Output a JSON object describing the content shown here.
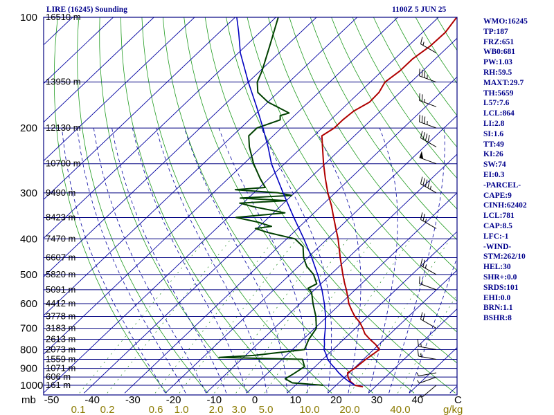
{
  "header": {
    "station": "LIRE (16245) Sounding",
    "time": "1100Z  5 JUN 25"
  },
  "colors": {
    "background": "#ffffff",
    "frame": "#000080",
    "isobar": "#000080",
    "isotherm": "#0000a0",
    "dry_adiabat": "#1e9a1e",
    "moist_adiabat": "#0000a0",
    "mixing_ratio": "#228b22",
    "temperature": "#b00000",
    "dewpoint": "#004000",
    "parcel": "#0000c0",
    "label_text": "#00008b",
    "axis_text": "#000000",
    "mixing_ratio_text": "#8b7a00"
  },
  "side_panel": [
    "WMO:16245",
    "TP:187",
    "FRZ:651",
    "WB0:681",
    "PW:1.03",
    "RH:59.5",
    "MAXT:29.7",
    "TH:5659",
    "L57:7.6",
    "LCL:864",
    "LI:2.8",
    "SI:1.6",
    "TT:49",
    "KI:26",
    "SW:74",
    "EI:0.3",
    "-PARCEL-",
    "CAPE:9",
    "CINH:62402",
    "LCL:781",
    "CAP:8.5",
    "LFC:-1",
    "-WIND-",
    "STM:262/10",
    "HEL:30",
    "SHR+:0.0",
    "SRDS:101",
    "EHI:0.0",
    "BRN:1.1",
    "BSHR:8"
  ],
  "chart_data": {
    "type": "line",
    "title": "LIRE (16245) Sounding",
    "subtitle": "1100Z  5 JUN 25",
    "y_axis": {
      "label": "mb",
      "scale": "log",
      "range": [
        1050,
        100
      ],
      "ticks": [
        100,
        200,
        300,
        400,
        500,
        600,
        700,
        800,
        900,
        1000
      ]
    },
    "x_axis": {
      "label": "C",
      "range": [
        -50,
        50
      ],
      "ticks": [
        -50,
        -40,
        -30,
        -20,
        -10,
        0,
        10,
        20,
        30,
        40
      ]
    },
    "mixing_ratio_axis": {
      "label": "g/kg",
      "ticks": [
        "0.1",
        "0.2",
        "0.6",
        "1.0",
        "2.0",
        "3.0",
        "5.0",
        "10.0",
        "20.0",
        "40.0"
      ]
    },
    "height_labels": [
      {
        "p": 100,
        "text": "16510 m"
      },
      {
        "p": 150,
        "text": "13950 m"
      },
      {
        "p": 200,
        "text": "12130 m"
      },
      {
        "p": 250,
        "text": "10700 m"
      },
      {
        "p": 300,
        "text": "9490 m"
      },
      {
        "p": 350,
        "text": "8423 m"
      },
      {
        "p": 400,
        "text": "7470 m"
      },
      {
        "p": 450,
        "text": "6607 m"
      },
      {
        "p": 500,
        "text": "5820 m"
      },
      {
        "p": 550,
        "text": "5091 m"
      },
      {
        "p": 600,
        "text": "4412 m"
      },
      {
        "p": 650,
        "text": "3778 m"
      },
      {
        "p": 700,
        "text": "3183 m"
      },
      {
        "p": 750,
        "text": "2613 m"
      },
      {
        "p": 800,
        "text": "2073 m"
      },
      {
        "p": 850,
        "text": "1559 m"
      },
      {
        "p": 900,
        "text": "1071 m"
      },
      {
        "p": 950,
        "text": "606 m"
      },
      {
        "p": 1000,
        "text": "161 m"
      }
    ],
    "series": [
      {
        "role": "temperature",
        "points": [
          [
            1010,
            27.0
          ],
          [
            1000,
            24.6
          ],
          [
            975,
            22.4
          ],
          [
            950,
            20.8
          ],
          [
            925,
            19.6
          ],
          [
            900,
            20.2
          ],
          [
            875,
            20.4
          ],
          [
            850,
            20.6
          ],
          [
            825,
            21.0
          ],
          [
            800,
            21.4
          ],
          [
            775,
            19.2
          ],
          [
            750,
            16.4
          ],
          [
            725,
            13.8
          ],
          [
            700,
            11.8
          ],
          [
            675,
            9.6
          ],
          [
            650,
            6.8
          ],
          [
            625,
            4.4
          ],
          [
            600,
            2.0
          ],
          [
            575,
            0.0
          ],
          [
            550,
            -2.2
          ],
          [
            525,
            -4.6
          ],
          [
            500,
            -7.0
          ],
          [
            450,
            -12.0
          ],
          [
            400,
            -17.4
          ],
          [
            375,
            -20.6
          ],
          [
            350,
            -24.0
          ],
          [
            325,
            -27.6
          ],
          [
            300,
            -31.8
          ],
          [
            275,
            -36.0
          ],
          [
            250,
            -40.4
          ],
          [
            225,
            -45.0
          ],
          [
            210,
            -48.0
          ],
          [
            200,
            -47.0
          ],
          [
            190,
            -47.0
          ],
          [
            180,
            -46.6
          ],
          [
            170,
            -45.0
          ],
          [
            160,
            -45.2
          ],
          [
            150,
            -46.4
          ],
          [
            140,
            -45.6
          ],
          [
            130,
            -45.6
          ],
          [
            120,
            -44.6
          ],
          [
            110,
            -44.4
          ],
          [
            100,
            -45.5
          ]
        ]
      },
      {
        "role": "dewpoint",
        "points": [
          [
            1000,
            16.8
          ],
          [
            985,
            8.6
          ],
          [
            960,
            5.8
          ],
          [
            930,
            6.6
          ],
          [
            890,
            7.4
          ],
          [
            850,
            5.0
          ],
          [
            840,
            -16.0
          ],
          [
            830,
            -8.0
          ],
          [
            800,
            3.0
          ],
          [
            750,
            1.4
          ],
          [
            700,
            0.4
          ],
          [
            650,
            -2.8
          ],
          [
            600,
            -6.8
          ],
          [
            560,
            -10.0
          ],
          [
            545,
            -12.0
          ],
          [
            530,
            -11.0
          ],
          [
            500,
            -14.2
          ],
          [
            475,
            -18.0
          ],
          [
            450,
            -21.0
          ],
          [
            420,
            -24.0
          ],
          [
            400,
            -28.0
          ],
          [
            385,
            -36.0
          ],
          [
            375,
            -40.4
          ],
          [
            370,
            -37.0
          ],
          [
            360,
            -41.6
          ],
          [
            350,
            -48.0
          ],
          [
            340,
            -37.2
          ],
          [
            328,
            -46.0
          ],
          [
            320,
            -50.8
          ],
          [
            315,
            -40.0
          ],
          [
            310,
            -52.0
          ],
          [
            305,
            -40.0
          ],
          [
            300,
            -44.0
          ],
          [
            294,
            -55.4
          ],
          [
            290,
            -48.6
          ],
          [
            275,
            -52.0
          ],
          [
            250,
            -57.6
          ],
          [
            225,
            -63.0
          ],
          [
            210,
            -66.0
          ],
          [
            200,
            -66.0
          ],
          [
            190,
            -62.4
          ],
          [
            185,
            -63.5
          ],
          [
            182,
            -62.0
          ],
          [
            170,
            -70.0
          ],
          [
            160,
            -75.0
          ],
          [
            150,
            -77.8
          ],
          [
            140,
            -79.5
          ],
          [
            120,
            -84.0
          ],
          [
            100,
            -89.4
          ]
        ]
      },
      {
        "role": "parcel",
        "points": [
          [
            1000,
            24.6
          ],
          [
            975,
            22.0
          ],
          [
            950,
            19.6
          ],
          [
            925,
            17.4
          ],
          [
            900,
            15.4
          ],
          [
            875,
            13.2
          ],
          [
            850,
            11.2
          ],
          [
            825,
            9.6
          ],
          [
            800,
            7.8
          ],
          [
            775,
            6.6
          ],
          [
            750,
            5.2
          ],
          [
            700,
            2.6
          ],
          [
            650,
            -0.4
          ],
          [
            600,
            -4.0
          ],
          [
            550,
            -8.2
          ],
          [
            500,
            -13.2
          ],
          [
            450,
            -19.0
          ],
          [
            400,
            -25.8
          ],
          [
            350,
            -33.8
          ],
          [
            300,
            -42.8
          ],
          [
            250,
            -53.2
          ],
          [
            225,
            -58.4
          ],
          [
            200,
            -64.5
          ],
          [
            175,
            -71.6
          ],
          [
            150,
            -80.0
          ],
          [
            125,
            -89.5
          ],
          [
            110,
            -95.2
          ],
          [
            100,
            -99.6
          ]
        ]
      }
    ],
    "background_lines": {
      "isobars": [
        100,
        150,
        200,
        250,
        300,
        350,
        400,
        450,
        500,
        550,
        600,
        650,
        700,
        750,
        800,
        850,
        900,
        950,
        1000
      ],
      "isotherms_step": 10,
      "dry_adiabats_theta_K": [
        250,
        260,
        270,
        280,
        290,
        300,
        310,
        320,
        330,
        340,
        350,
        360,
        370,
        380,
        390,
        400,
        410,
        420,
        430,
        440,
        450,
        460,
        470,
        480,
        490,
        500
      ],
      "moist_adiabats_C": [
        -20,
        -15,
        -10,
        -5,
        0,
        5,
        10,
        15,
        20,
        25,
        30,
        35,
        40
      ],
      "mixing_ratios_gkg": [
        0.1,
        0.2,
        0.6,
        1.0,
        2.0,
        3.0,
        5.0,
        10.0,
        20.0,
        40.0
      ]
    },
    "wind_barbs": [
      {
        "p": 125,
        "dir": 300,
        "spd": 15
      },
      {
        "p": 150,
        "dir": 290,
        "spd": 35
      },
      {
        "p": 175,
        "dir": 290,
        "spd": 25
      },
      {
        "p": 200,
        "dir": 290,
        "spd": 35
      },
      {
        "p": 225,
        "dir": 300,
        "spd": 40
      },
      {
        "p": 250,
        "dir": 290,
        "spd": 50
      },
      {
        "p": 300,
        "dir": 300,
        "spd": 45
      },
      {
        "p": 375,
        "dir": 300,
        "spd": 25
      },
      {
        "p": 500,
        "dir": 300,
        "spd": 25
      },
      {
        "p": 550,
        "dir": 290,
        "spd": 15
      },
      {
        "p": 700,
        "dir": 300,
        "spd": 20
      },
      {
        "p": 800,
        "dir": 280,
        "spd": 15
      },
      {
        "p": 850,
        "dir": 280,
        "spd": 15
      },
      {
        "p": 925,
        "dir": 260,
        "spd": 5
      },
      {
        "p": 950,
        "dir": 250,
        "spd": 5
      },
      {
        "p": 1000,
        "dir": 230,
        "spd": 5
      }
    ]
  }
}
